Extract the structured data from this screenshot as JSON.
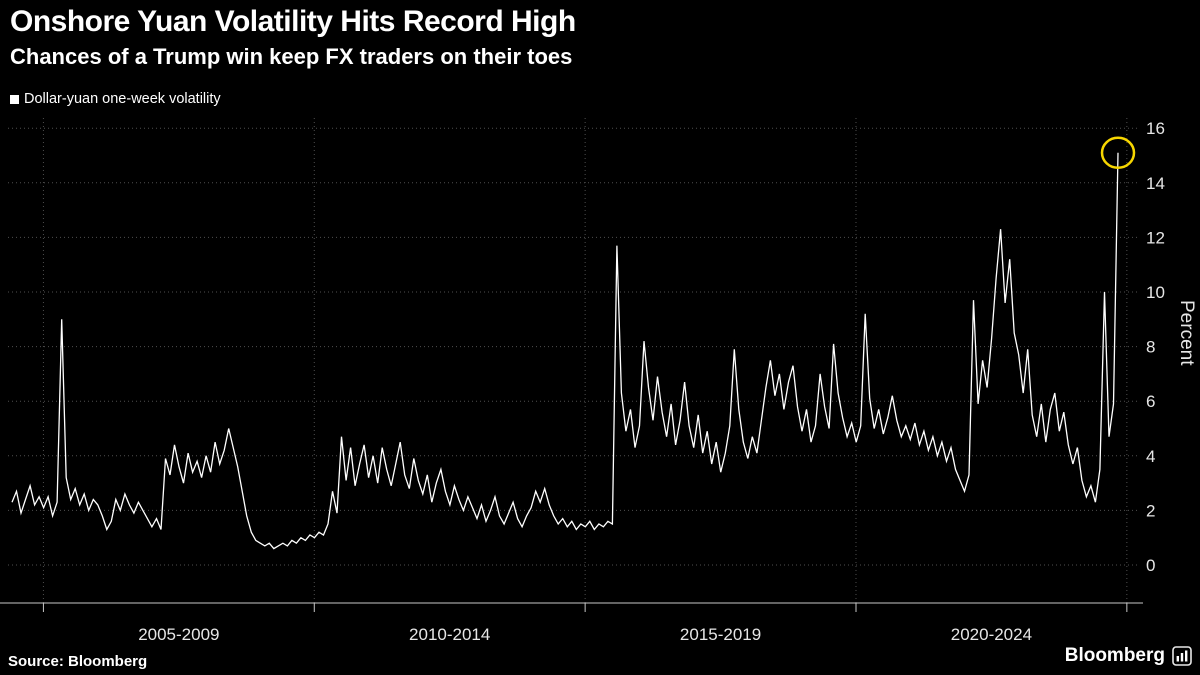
{
  "header": {
    "title": "Onshore Yuan Volatility Hits Record High",
    "subtitle": "Chances of a Trump win keep FX traders on their toes"
  },
  "legend": {
    "label": "Dollar-yuan one-week volatility"
  },
  "source": {
    "label": "Source: Bloomberg"
  },
  "branding": {
    "logo_text": "Bloomberg",
    "logo_icon": "bar-chart-icon"
  },
  "chart_data": {
    "type": "line",
    "title": "Onshore Yuan Volatility Hits Record High",
    "subtitle": "Chances of a Trump win keep FX traders on their toes",
    "ylabel": "Percent",
    "ylim": [
      0,
      16
    ],
    "y_ticks": [
      0,
      2,
      4,
      6,
      8,
      10,
      12,
      14,
      16
    ],
    "x_gridline_years": [
      2005,
      2010,
      2015,
      2020,
      2025
    ],
    "x_tick_labels": [
      "2005-2009",
      "2010-2014",
      "2015-2019",
      "2020-2024"
    ],
    "grid": "dotted",
    "legend_position": "top-left",
    "background": "#000000",
    "line_color": "#ffffff",
    "highlight": {
      "shape": "circle",
      "color": "#f7d600",
      "value": 15.1
    },
    "series": [
      {
        "name": "Dollar-yuan one-week volatility",
        "unit": "percent",
        "start_year": 2004.42,
        "step_years": 0.0833333,
        "values": [
          2.3,
          2.7,
          1.9,
          2.4,
          2.9,
          2.2,
          2.5,
          2.1,
          2.5,
          1.8,
          2.3,
          9.0,
          3.2,
          2.4,
          2.8,
          2.2,
          2.6,
          2.0,
          2.4,
          2.2,
          1.8,
          1.3,
          1.6,
          2.4,
          2.0,
          2.6,
          2.2,
          1.9,
          2.3,
          2.0,
          1.7,
          1.4,
          1.7,
          1.3,
          3.9,
          3.3,
          4.4,
          3.6,
          3.0,
          4.1,
          3.4,
          3.8,
          3.2,
          4.0,
          3.4,
          4.5,
          3.7,
          4.2,
          5.0,
          4.3,
          3.6,
          2.7,
          1.8,
          1.2,
          0.9,
          0.8,
          0.7,
          0.8,
          0.6,
          0.7,
          0.8,
          0.7,
          0.9,
          0.8,
          1.0,
          0.9,
          1.1,
          1.0,
          1.2,
          1.1,
          1.5,
          2.7,
          1.9,
          4.7,
          3.1,
          4.3,
          2.9,
          3.7,
          4.4,
          3.2,
          4.0,
          3.0,
          4.3,
          3.5,
          2.9,
          3.7,
          4.5,
          3.3,
          2.8,
          3.9,
          3.1,
          2.6,
          3.3,
          2.3,
          3.0,
          3.5,
          2.7,
          2.2,
          2.9,
          2.4,
          2.0,
          2.5,
          2.1,
          1.7,
          2.2,
          1.6,
          2.0,
          2.5,
          1.8,
          1.5,
          1.9,
          2.3,
          1.7,
          1.4,
          1.8,
          2.1,
          2.7,
          2.3,
          2.8,
          2.2,
          1.8,
          1.5,
          1.7,
          1.4,
          1.6,
          1.3,
          1.5,
          1.4,
          1.6,
          1.3,
          1.5,
          1.4,
          1.6,
          1.5,
          11.7,
          6.3,
          4.9,
          5.7,
          4.3,
          5.1,
          8.2,
          6.5,
          5.3,
          6.9,
          5.6,
          4.7,
          5.9,
          4.4,
          5.3,
          6.7,
          5.1,
          4.3,
          5.5,
          4.1,
          4.9,
          3.7,
          4.5,
          3.4,
          4.1,
          5.1,
          7.9,
          5.7,
          4.5,
          3.9,
          4.7,
          4.1,
          5.3,
          6.5,
          7.5,
          6.2,
          7.0,
          5.7,
          6.7,
          7.3,
          5.8,
          4.9,
          5.7,
          4.5,
          5.1,
          7.0,
          5.8,
          5.0,
          8.1,
          6.3,
          5.4,
          4.7,
          5.2,
          4.5,
          5.1,
          9.2,
          6.1,
          5.0,
          5.7,
          4.8,
          5.4,
          6.2,
          5.3,
          4.7,
          5.1,
          4.6,
          5.2,
          4.4,
          4.9,
          4.2,
          4.7,
          4.0,
          4.5,
          3.8,
          4.3,
          3.5,
          3.1,
          2.7,
          3.3,
          9.7,
          5.9,
          7.5,
          6.5,
          8.3,
          10.5,
          12.3,
          9.6,
          11.2,
          8.5,
          7.7,
          6.3,
          7.9,
          5.5,
          4.7,
          5.9,
          4.5,
          5.7,
          6.3,
          4.9,
          5.6,
          4.4,
          3.7,
          4.3,
          3.1,
          2.5,
          2.9,
          2.3,
          3.5,
          10.0,
          4.7,
          5.9,
          15.1
        ]
      }
    ]
  }
}
